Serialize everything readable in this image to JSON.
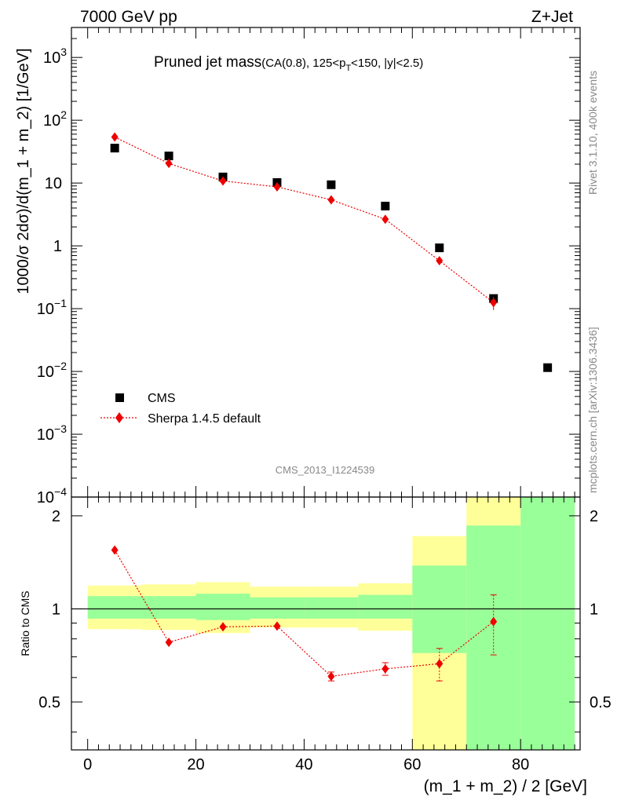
{
  "chart_data": [
    {
      "type": "scatter",
      "panel": "main",
      "header_left": "7000 GeV pp",
      "header_right": "Z+Jet",
      "title_main": "Pruned jet mass",
      "title_sub": "(CA(0.8), 125<p",
      "title_sub_index": "T",
      "title_sub_rest": "<150, |y|<2.5)",
      "ylabel": "1000/σ 2dσ)/d(m_1 + m_2) [1/GeV]",
      "yscale": "log",
      "ylim": [
        0.0001,
        3000
      ],
      "xlim": [
        -3,
        91
      ],
      "y_ticks": [
        {
          "value": 1000,
          "label": "10",
          "exp": "3"
        },
        {
          "value": 100,
          "label": "10",
          "exp": "2"
        },
        {
          "value": 10,
          "label": "10",
          "exp": ""
        },
        {
          "value": 1,
          "label": "1",
          "exp": ""
        },
        {
          "value": 0.1,
          "label": "10",
          "exp": "−1"
        },
        {
          "value": 0.01,
          "label": "10",
          "exp": "−2"
        },
        {
          "value": 0.001,
          "label": "10",
          "exp": "−3"
        },
        {
          "value": 0.0001,
          "label": "10",
          "exp": "−4"
        }
      ],
      "series": [
        {
          "name": "CMS",
          "marker": "square",
          "color": "#000000",
          "x": [
            5,
            15,
            25,
            35,
            45,
            55,
            65,
            75,
            85
          ],
          "y": [
            36,
            27,
            12.5,
            10.2,
            9.4,
            4.3,
            0.93,
            0.145,
            0.0115
          ]
        },
        {
          "name": "Sherpa 1.4.5 default",
          "marker": "diamond",
          "color": "#ee0000",
          "x": [
            5,
            15,
            25,
            35,
            45,
            55,
            65,
            75
          ],
          "y": [
            54,
            20.5,
            10.8,
            8.7,
            5.4,
            2.65,
            0.58,
            0.125
          ],
          "yerr": [
            0,
            0,
            0,
            0,
            0,
            0,
            0,
            0.03
          ]
        }
      ],
      "legend_position": "bottom-left",
      "watermark": "CMS_2013_I1224539",
      "side_label_top": "Rivet 3.1.10,  400k events",
      "side_label_bottom": "mcplots.cern.ch [arXiv:1306.3436]"
    },
    {
      "type": "line",
      "panel": "ratio",
      "ylabel": "Ratio to CMS",
      "xlabel": "(m_1 + m_2) / 2 [GeV]",
      "yscale": "log",
      "ylim": [
        0.35,
        2.3
      ],
      "xlim": [
        -3,
        91
      ],
      "x_ticks": [
        0,
        20,
        40,
        60,
        80
      ],
      "y_ticks": [
        {
          "value": 0.5,
          "label": "0.5"
        },
        {
          "value": 1,
          "label": "1"
        },
        {
          "value": 2,
          "label": "2"
        }
      ],
      "bands": [
        {
          "x0": 0,
          "x1": 10,
          "y_low": 0.86,
          "y_high": 1.19,
          "g_low": 0.93,
          "g_high": 1.1
        },
        {
          "x0": 10,
          "x1": 20,
          "y_low": 0.855,
          "y_high": 1.2,
          "g_low": 0.93,
          "g_high": 1.1
        },
        {
          "x0": 20,
          "x1": 30,
          "y_low": 0.835,
          "y_high": 1.22,
          "g_low": 0.92,
          "g_high": 1.12
        },
        {
          "x0": 30,
          "x1": 40,
          "y_low": 0.87,
          "y_high": 1.18,
          "g_low": 0.93,
          "g_high": 1.09
        },
        {
          "x0": 40,
          "x1": 50,
          "y_low": 0.87,
          "y_high": 1.18,
          "g_low": 0.93,
          "g_high": 1.09
        },
        {
          "x0": 50,
          "x1": 60,
          "y_low": 0.85,
          "y_high": 1.21,
          "g_low": 0.93,
          "g_high": 1.11
        },
        {
          "x0": 60,
          "x1": 70,
          "y_low": 0.35,
          "y_high": 1.72,
          "g_low": 0.72,
          "g_high": 1.38
        },
        {
          "x0": 70,
          "x1": 80,
          "y_low": 0.35,
          "y_high": 2.3,
          "g_low": 0.35,
          "g_high": 1.86
        },
        {
          "x0": 80,
          "x1": 90,
          "y_low": 0.35,
          "y_high": 2.3,
          "g_low": 0.35,
          "g_high": 2.3
        }
      ],
      "series": [
        {
          "name": "Sherpa 1.4.5 default / CMS",
          "marker": "diamond",
          "color": "#ee0000",
          "x": [
            5,
            15,
            25,
            35,
            45,
            55,
            65,
            75
          ],
          "y": [
            1.55,
            0.78,
            0.875,
            0.88,
            0.605,
            0.64,
            0.665,
            0.91
          ],
          "yerr": [
            0,
            0,
            0,
            0,
            0.02,
            0.03,
            0.08,
            0.2
          ]
        }
      ],
      "colors": {
        "outer_band": "#ffff99",
        "inner_band": "#99ff99",
        "reference_line": "#000000"
      }
    }
  ]
}
